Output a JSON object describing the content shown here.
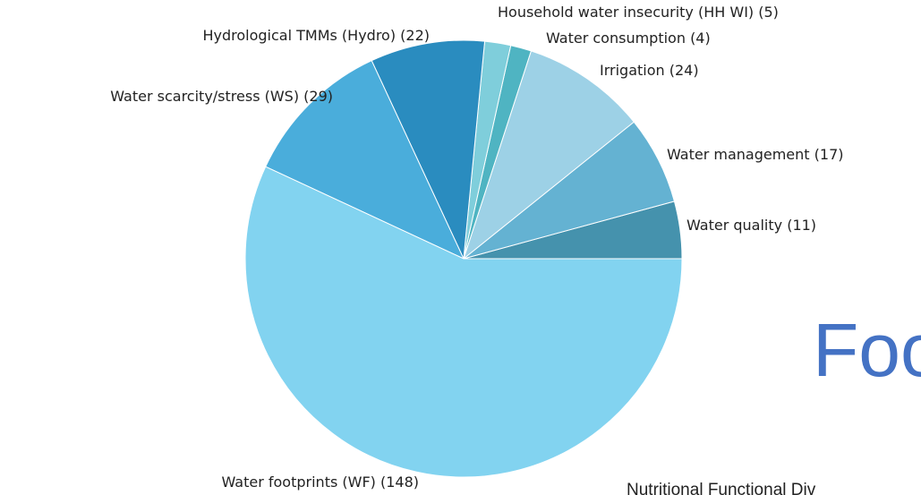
{
  "chart_data": {
    "type": "pie",
    "categories": [
      "Water quality (11)",
      "Water management (17)",
      "Irrigation (24)",
      "Water consumption (4)",
      "Household water insecurity (HH WI) (5)",
      "Hydrological TMMs (Hydro) (22)",
      "Water scarcity/stress (WS) (29)",
      "Water footprints (WF) (148)"
    ],
    "values": [
      11,
      17,
      24,
      4,
      5,
      22,
      29,
      148
    ],
    "colors": [
      "#4592ad",
      "#64b2d2",
      "#9dd1e6",
      "#4fb4c2",
      "#7fcedb",
      "#2a8cbf",
      "#4aaddb",
      "#82d3f0"
    ]
  },
  "slide_text": {
    "heading": "Foo",
    "subheading": "Nutritional Functional Div"
  }
}
